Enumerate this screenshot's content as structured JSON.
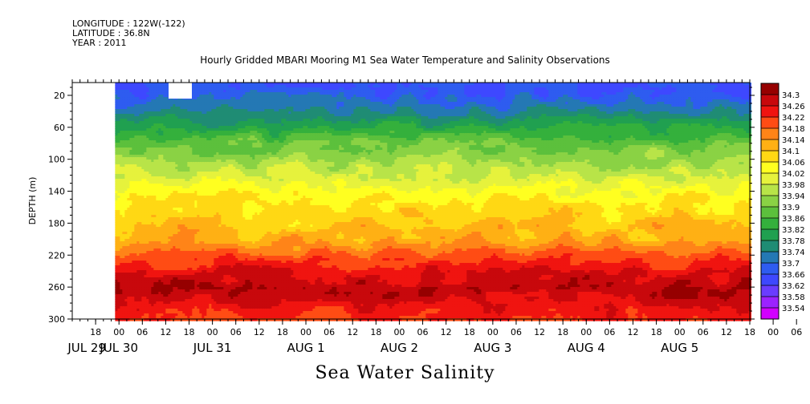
{
  "header": {
    "longitude": "LONGITUDE : 122W(-122)",
    "latitude": "LATITUDE : 36.8N",
    "year": "YEAR : 2011"
  },
  "chart_data": {
    "type": "heatmap",
    "title": "Hourly Gridded MBARI Mooring M1 Sea Water Temperature and Salinity Observations",
    "variable": "Sea Water Salinity",
    "ylabel": "DEPTH (m)",
    "ylim": [
      300,
      4
    ],
    "y_inverted": true,
    "y_ticks": [
      20,
      60,
      100,
      140,
      180,
      220,
      260,
      300
    ],
    "x_time_range": [
      "2011-07-29T12:00",
      "2011-08-05T18:00"
    ],
    "data_start": "2011-07-29T23:00",
    "x_hour_ticks": [
      "18",
      "00",
      "06",
      "12",
      "18",
      "00",
      "06",
      "12",
      "18",
      "00",
      "06",
      "12",
      "18",
      "00",
      "06",
      "12",
      "18",
      "00",
      "06",
      "12",
      "18",
      "00",
      "06",
      "12",
      "18",
      "00",
      "06",
      "12",
      "18",
      "00",
      "06",
      "12"
    ],
    "x_day_labels": [
      "JUL 29",
      "JUL 30",
      "JUL 31",
      "AUG  1",
      "AUG  2",
      "AUG  3",
      "AUG  4",
      "AUG  5"
    ],
    "colorbar_levels": [
      33.54,
      33.58,
      33.62,
      33.66,
      33.7,
      33.74,
      33.78,
      33.82,
      33.86,
      33.9,
      33.94,
      33.98,
      34.02,
      34.06,
      34.1,
      34.14,
      34.18,
      34.22,
      34.26,
      34.3
    ],
    "colorbar_colors": [
      "#d200ff",
      "#9c22ff",
      "#6a3cff",
      "#3e48ff",
      "#2e5cf0",
      "#2478b4",
      "#1f8c74",
      "#20a050",
      "#34b03c",
      "#5cc03c",
      "#8ad244",
      "#b8e448",
      "#e6f23c",
      "#ffff20",
      "#ffd814",
      "#ffb014",
      "#ff8418",
      "#ff4c14",
      "#f01410",
      "#c8080c",
      "#960000"
    ],
    "depth_profile": [
      {
        "depth": 10,
        "salinity": 33.66
      },
      {
        "depth": 20,
        "salinity": 33.68
      },
      {
        "depth": 40,
        "salinity": 33.74
      },
      {
        "depth": 60,
        "salinity": 33.82
      },
      {
        "depth": 80,
        "salinity": 33.9
      },
      {
        "depth": 100,
        "salinity": 33.94
      },
      {
        "depth": 120,
        "salinity": 33.98
      },
      {
        "depth": 140,
        "salinity": 34.04
      },
      {
        "depth": 160,
        "salinity": 34.08
      },
      {
        "depth": 180,
        "salinity": 34.1
      },
      {
        "depth": 200,
        "salinity": 34.13
      },
      {
        "depth": 220,
        "salinity": 34.2
      },
      {
        "depth": 240,
        "salinity": 34.26
      },
      {
        "depth": 260,
        "salinity": 34.29
      },
      {
        "depth": 280,
        "salinity": 34.25
      },
      {
        "depth": 300,
        "salinity": 34.22
      }
    ]
  }
}
